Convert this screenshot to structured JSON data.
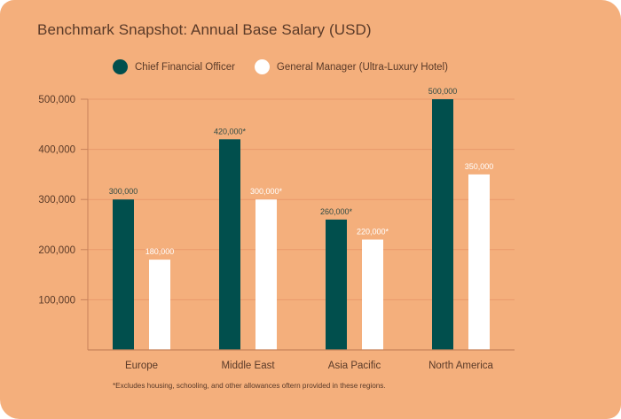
{
  "colors": {
    "background": "#f4af7c",
    "cfo": "#014f4d",
    "gm": "#ffffff",
    "text": "#5a3a28",
    "grid": "#e9996a",
    "axis": "#c8825a"
  },
  "legend": [
    {
      "label": "Chief Financial Officer",
      "color": "#014f4d"
    },
    {
      "label": "General Manager (Ultra-Luxury Hotel)",
      "color": "#ffffff"
    }
  ],
  "footnote": "*Excludes housing, schooling, and other allowances oftern provided in these regions.",
  "chart_data": {
    "type": "bar",
    "title": "Benchmark Snapshot: Annual Base Salary (USD)",
    "xlabel": "",
    "ylabel": "",
    "ylim": [
      0,
      500000
    ],
    "yticks": [
      100000,
      200000,
      300000,
      400000,
      500000
    ],
    "ytick_labels": [
      "100,000",
      "200,000",
      "300,000",
      "400,000",
      "500,000"
    ],
    "grid": true,
    "legend_position": "top-left",
    "categories": [
      "Europe",
      "Middle East",
      "Asia Pacific",
      "North America"
    ],
    "series": [
      {
        "name": "Chief Financial Officer",
        "color": "#014f4d",
        "values": [
          300000,
          420000,
          260000,
          500000
        ],
        "labels": [
          "300,000",
          "420,000*",
          "260,000*",
          "500,000"
        ]
      },
      {
        "name": "General Manager (Ultra-Luxury Hotel)",
        "color": "#ffffff",
        "values": [
          180000,
          300000,
          220000,
          350000
        ],
        "labels": [
          "180,000",
          "300,000*",
          "220,000*",
          "350,000"
        ]
      }
    ]
  }
}
